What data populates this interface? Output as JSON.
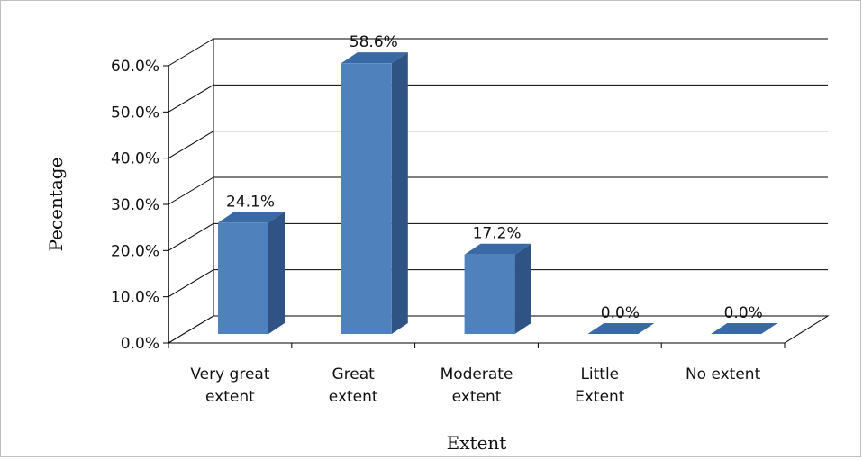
{
  "chart_data": {
    "type": "bar",
    "style": "3d-column",
    "categories": [
      [
        "Very great",
        "extent"
      ],
      [
        "Great",
        "extent"
      ],
      [
        "Moderate",
        "extent"
      ],
      [
        "Little",
        "Extent"
      ],
      [
        "No extent"
      ]
    ],
    "values": [
      24.1,
      58.6,
      17.2,
      0.0,
      0.0
    ],
    "data_labels": [
      "24.1%",
      "58.6%",
      "17.2%",
      "0.0%",
      "0.0%"
    ],
    "xlabel": "Extent",
    "ylabel": "Pecentage",
    "ylim": [
      0,
      60
    ],
    "yticks": [
      "0.0%",
      "10.0%",
      "20.0%",
      "30.0%",
      "40.0%",
      "50.0%",
      "60.0%"
    ],
    "grid": true,
    "legend": "none",
    "colors": {
      "bar_front": "#4f81bd",
      "bar_side": "#2f5384",
      "bar_top": "#3a6aa5",
      "grid": "#000000"
    }
  }
}
